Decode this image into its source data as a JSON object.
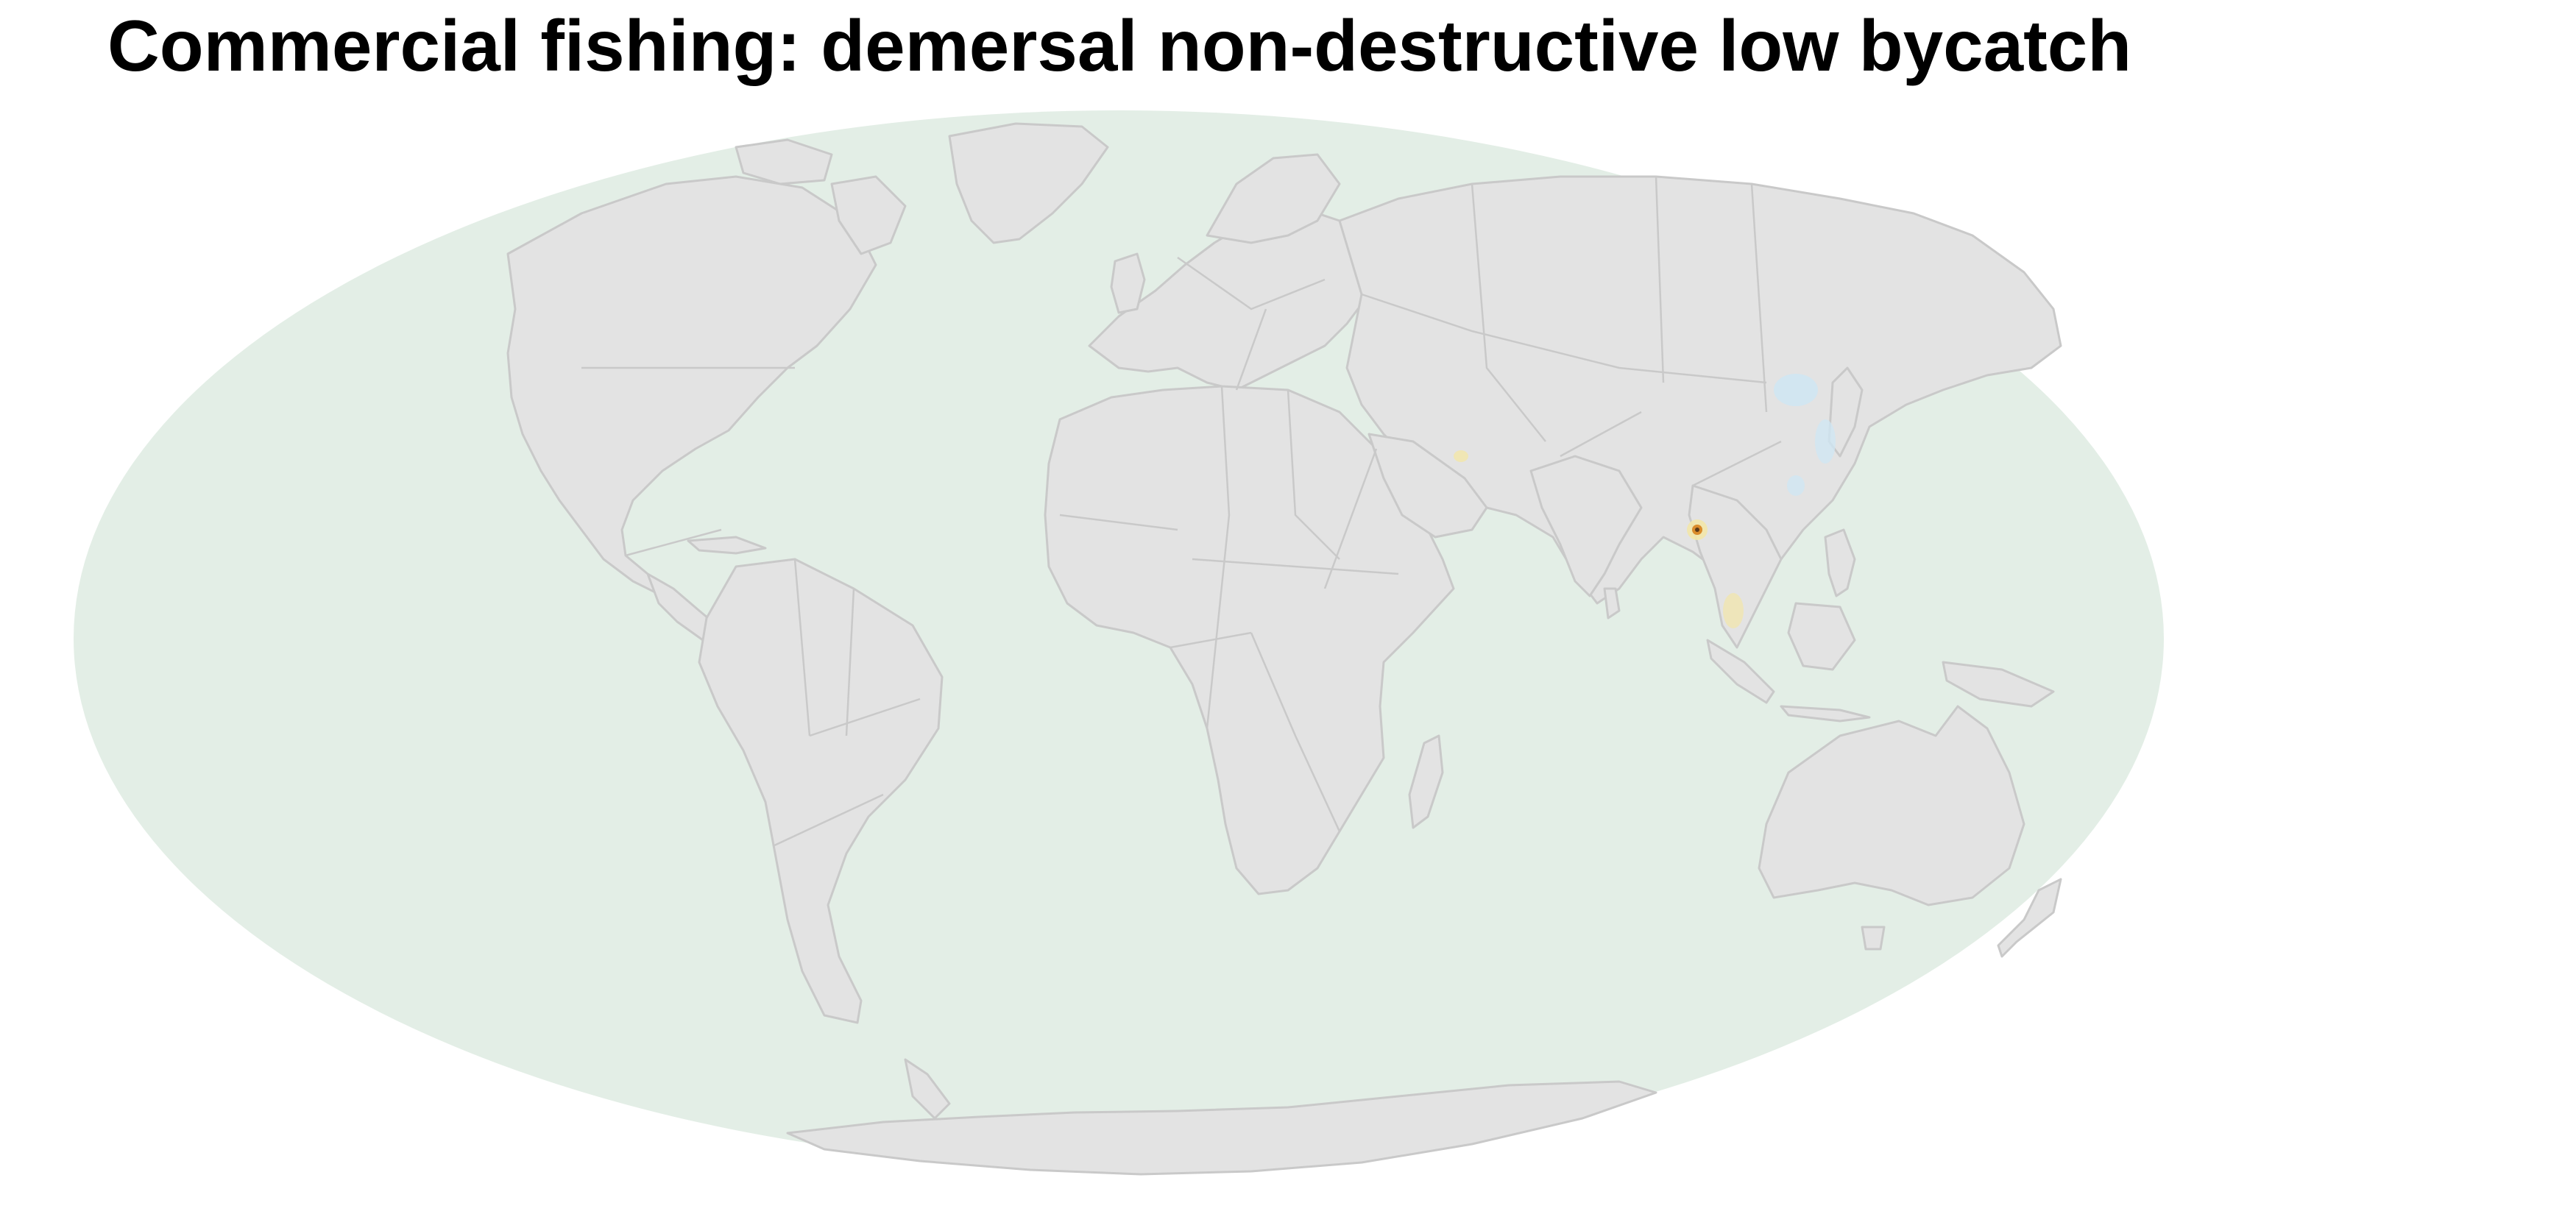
{
  "title": "Commercial fishing: demersal non-destructive low bycatch",
  "map": {
    "projection": "Mollweide",
    "colors": {
      "ocean": "#e3eee6",
      "land": "#e3e3e3",
      "border": "#c9c9c9",
      "hotspot_yellow": "#f2e6a8",
      "hotspot_orange": "#d98b2b",
      "hotspot_dark": "#5a3a1a",
      "hotspot_blue": "#cfe6f2"
    }
  }
}
